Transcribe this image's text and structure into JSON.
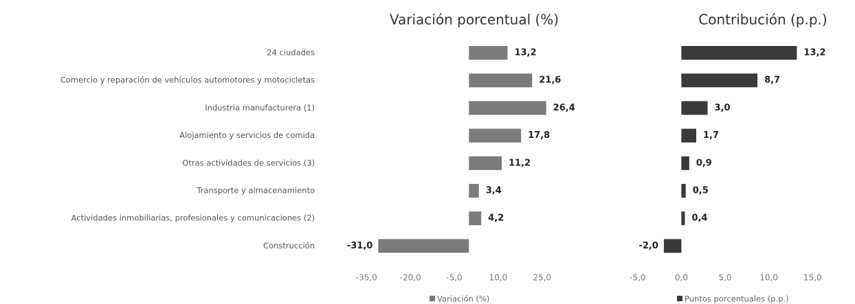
{
  "chart_data": [
    {
      "type": "bar",
      "orientation": "horizontal",
      "title": "Variación porcentual (%)",
      "categories": [
        "24 ciudades",
        "Comercio y reparación de vehículos automotores y motocicletas",
        "Industria manufacturera (1)",
        "Alojamiento y servicios de comida",
        "Otras actividades de servicios (3)",
        "Transporte y almacenamiento",
        "Actividades inmobiliarias, profesionales y comunicaciones (2)",
        "Construcción"
      ],
      "series": [
        {
          "name": "Variación (%)",
          "color": "#7b7b7b",
          "values": [
            13.2,
            21.6,
            26.4,
            17.8,
            11.2,
            3.4,
            4.2,
            -31.0
          ],
          "value_labels": [
            "13,2",
            "21,6",
            "26,4",
            "17,8",
            "11,2",
            "3,4",
            "4,2",
            "-31,0"
          ]
        }
      ],
      "xlim": [
        -40,
        30
      ],
      "xticks": [
        {
          "value": -35,
          "label": "-35,0"
        },
        {
          "value": -20,
          "label": "-20,0"
        },
        {
          "value": -5,
          "label": "-5,0"
        },
        {
          "value": 10,
          "label": "10,0"
        },
        {
          "value": 25,
          "label": "25,0"
        }
      ]
    },
    {
      "type": "bar",
      "orientation": "horizontal",
      "title": "Contribución (p.p.)",
      "series": [
        {
          "name": "Puntos porcentuales (p.p.)",
          "color": "#3a3a3a",
          "values": [
            13.2,
            8.7,
            3.0,
            1.7,
            0.9,
            0.5,
            0.4,
            -2.0
          ],
          "value_labels": [
            "13,2",
            "8,7",
            "3,0",
            "1,7",
            "0,9",
            "0,5",
            "0,4",
            "-2,0"
          ]
        }
      ],
      "xlim": [
        -6,
        16
      ],
      "xticks": [
        {
          "value": -5,
          "label": "-5,0"
        },
        {
          "value": 0,
          "label": "0,0"
        },
        {
          "value": 5,
          "label": "5,0"
        },
        {
          "value": 10,
          "label": "10,0"
        },
        {
          "value": 15,
          "label": "15,0"
        }
      ]
    }
  ]
}
